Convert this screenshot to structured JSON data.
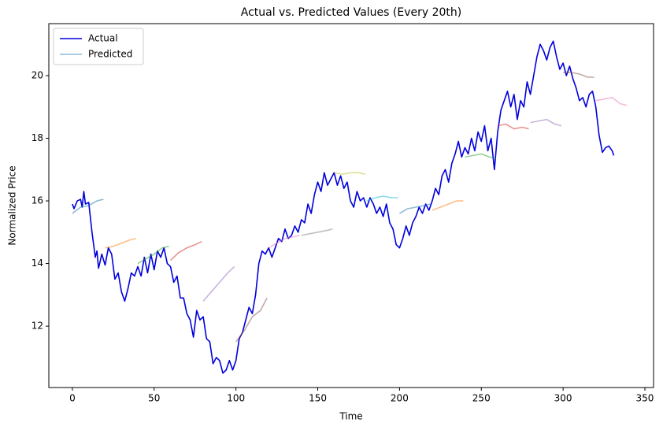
{
  "chart_data": {
    "type": "line",
    "title": "Actual vs. Predicted Values (Every 20th)",
    "xlabel": "Time",
    "ylabel": "Normalized Price",
    "xlim": [
      -14.4,
      355.3
    ],
    "ylim": [
      10.04,
      21.66
    ],
    "xticks": [
      0,
      50,
      100,
      150,
      200,
      250,
      300,
      350
    ],
    "yticks": [
      12,
      14,
      16,
      18,
      20
    ],
    "legend": "upper left",
    "series": [
      {
        "name": "Actual",
        "color": "#0000dd",
        "x": [
          0,
          1,
          3,
          5,
          6,
          7,
          8,
          10,
          12,
          14,
          15,
          16,
          18,
          20,
          22,
          24,
          26,
          28,
          30,
          32,
          34,
          36,
          38,
          40,
          42,
          44,
          46,
          48,
          50,
          52,
          54,
          56,
          58,
          60,
          62,
          64,
          66,
          68,
          70,
          72,
          74,
          76,
          78,
          80,
          82,
          84,
          86,
          88,
          90,
          92,
          94,
          96,
          98,
          100,
          102,
          104,
          106,
          108,
          110,
          112,
          114,
          116,
          118,
          120,
          122,
          124,
          126,
          128,
          130,
          132,
          134,
          136,
          138,
          140,
          142,
          144,
          146,
          148,
          150,
          152,
          154,
          156,
          158,
          160,
          162,
          164,
          166,
          168,
          170,
          172,
          174,
          176,
          178,
          180,
          182,
          184,
          186,
          188,
          190,
          192,
          194,
          196,
          198,
          200,
          202,
          204,
          206,
          208,
          210,
          212,
          214,
          216,
          218,
          220,
          222,
          224,
          226,
          228,
          230,
          232,
          234,
          236,
          238,
          240,
          242,
          244,
          246,
          248,
          250,
          252,
          254,
          256,
          258,
          260,
          262,
          264,
          266,
          268,
          270,
          272,
          274,
          276,
          278,
          280,
          282,
          284,
          286,
          288,
          290,
          292,
          294,
          296,
          298,
          300,
          302,
          304,
          306,
          308,
          310,
          312,
          314,
          316,
          318,
          320,
          322,
          324,
          326,
          328,
          330,
          331
        ],
        "values": [
          15.9,
          15.75,
          16.0,
          16.05,
          15.8,
          16.3,
          15.9,
          15.95,
          15.0,
          14.2,
          14.4,
          13.85,
          14.3,
          13.95,
          14.5,
          14.3,
          13.5,
          13.7,
          13.1,
          12.8,
          13.2,
          13.7,
          13.6,
          13.9,
          13.6,
          14.2,
          13.7,
          14.3,
          13.8,
          14.4,
          14.2,
          14.5,
          14.0,
          13.9,
          13.4,
          13.6,
          12.9,
          12.9,
          12.4,
          12.2,
          11.65,
          12.5,
          12.2,
          12.3,
          11.6,
          11.5,
          10.8,
          11.0,
          10.9,
          10.5,
          10.6,
          10.9,
          10.6,
          10.9,
          11.6,
          11.8,
          12.2,
          12.6,
          12.4,
          13.0,
          14.0,
          14.4,
          14.3,
          14.5,
          14.2,
          14.5,
          14.8,
          14.7,
          15.1,
          14.8,
          14.9,
          15.2,
          15.0,
          15.4,
          15.3,
          15.9,
          15.6,
          16.2,
          16.6,
          16.3,
          16.9,
          16.5,
          16.7,
          16.9,
          16.5,
          16.8,
          16.4,
          16.6,
          16.0,
          15.8,
          16.3,
          16.0,
          16.1,
          15.8,
          16.1,
          15.9,
          15.6,
          15.8,
          15.5,
          15.9,
          15.3,
          15.1,
          14.6,
          14.5,
          14.8,
          15.2,
          14.9,
          15.3,
          15.5,
          15.8,
          15.6,
          15.9,
          15.7,
          16.0,
          16.4,
          16.2,
          16.8,
          17.0,
          16.6,
          17.2,
          17.5,
          17.9,
          17.4,
          17.7,
          17.5,
          18.0,
          17.6,
          18.2,
          17.9,
          18.4,
          17.6,
          18.0,
          17.0,
          18.2,
          18.9,
          19.2,
          19.5,
          19.0,
          19.4,
          18.6,
          19.2,
          19.0,
          19.8,
          19.4,
          20.0,
          20.6,
          21.0,
          20.8,
          20.5,
          20.9,
          21.1,
          20.6,
          20.2,
          20.4,
          20.0,
          20.3,
          19.9,
          19.6,
          19.2,
          19.3,
          19.0,
          19.4,
          19.5,
          19.0,
          18.1,
          17.55,
          17.7,
          17.75,
          17.6,
          17.45
        ]
      },
      {
        "name": "Predicted",
        "color": "#1f77b4",
        "alpha": 0.5,
        "segments": [
          {
            "color": "#1f77b4",
            "x": [
              0,
              5,
              10,
              15,
              19
            ],
            "values": [
              15.6,
              15.8,
              15.85,
              16.0,
              16.05
            ]
          },
          {
            "color": "#ff7f0e",
            "x": [
              20,
              25,
              30,
              35,
              39
            ],
            "values": [
              14.5,
              14.55,
              14.65,
              14.75,
              14.8
            ]
          },
          {
            "color": "#2ca02c",
            "x": [
              40,
              45,
              50,
              55,
              59
            ],
            "values": [
              14.0,
              14.15,
              14.3,
              14.5,
              14.55
            ]
          },
          {
            "color": "#d62728",
            "x": [
              60,
              65,
              70,
              75,
              79
            ],
            "values": [
              14.1,
              14.35,
              14.5,
              14.6,
              14.7
            ]
          },
          {
            "color": "#9467bd",
            "x": [
              80,
              85,
              90,
              95,
              99
            ],
            "values": [
              12.8,
              13.1,
              13.4,
              13.7,
              13.9
            ]
          },
          {
            "color": "#8c564b",
            "x": [
              100,
              105,
              110,
              115,
              119
            ],
            "values": [
              11.5,
              11.85,
              12.3,
              12.5,
              12.9
            ]
          },
          {
            "color": "#e377c2",
            "x": [
              120,
              125,
              130,
              135,
              139
            ],
            "values": [
              14.5,
              14.65,
              14.8,
              14.85,
              14.9
            ]
          },
          {
            "color": "#7f7f7f",
            "x": [
              140,
              145,
              150,
              155,
              159
            ],
            "values": [
              14.9,
              14.95,
              15.0,
              15.05,
              15.1
            ]
          },
          {
            "color": "#bcbd22",
            "x": [
              160,
              165,
              170,
              175,
              179
            ],
            "values": [
              16.9,
              16.85,
              16.9,
              16.9,
              16.85
            ]
          },
          {
            "color": "#17becf",
            "x": [
              180,
              185,
              190,
              195,
              199
            ],
            "values": [
              16.0,
              16.1,
              16.15,
              16.1,
              16.1
            ]
          },
          {
            "color": "#1f77b4",
            "x": [
              200,
              205,
              210,
              215,
              219
            ],
            "values": [
              15.6,
              15.75,
              15.8,
              15.85,
              15.9
            ]
          },
          {
            "color": "#ff7f0e",
            "x": [
              220,
              225,
              230,
              235,
              239
            ],
            "values": [
              15.7,
              15.8,
              15.9,
              16.0,
              16.0
            ]
          },
          {
            "color": "#2ca02c",
            "x": [
              240,
              245,
              250,
              255,
              259
            ],
            "values": [
              17.4,
              17.45,
              17.5,
              17.4,
              17.35
            ]
          },
          {
            "color": "#d62728",
            "x": [
              260,
              265,
              270,
              275,
              279
            ],
            "values": [
              18.4,
              18.45,
              18.3,
              18.35,
              18.3
            ]
          },
          {
            "color": "#9467bd",
            "x": [
              280,
              285,
              290,
              295,
              299
            ],
            "values": [
              18.5,
              18.55,
              18.6,
              18.45,
              18.4
            ]
          },
          {
            "color": "#8c564b",
            "x": [
              300,
              305,
              310,
              315,
              319
            ],
            "values": [
              20.1,
              20.1,
              20.05,
              19.95,
              19.95
            ]
          },
          {
            "color": "#e377c2",
            "x": [
              320,
              325,
              330,
              335,
              339
            ],
            "values": [
              19.2,
              19.25,
              19.3,
              19.1,
              19.05
            ]
          }
        ]
      }
    ]
  }
}
